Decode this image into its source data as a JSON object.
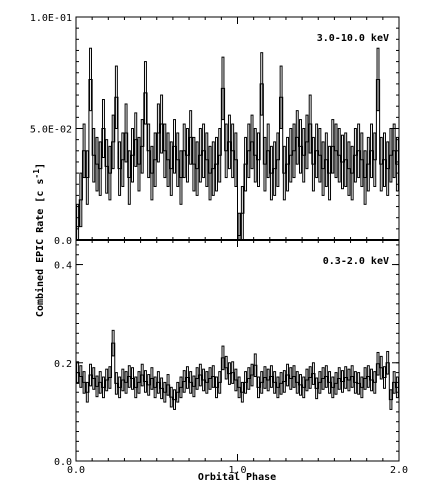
{
  "chart_data": {
    "type": "line",
    "figure": {
      "xlabel": "Orbital Phase",
      "ylabel_main": "Combined EPIC Rate [c s",
      "ylabel_exp": "-1",
      "ylabel_close": "]"
    },
    "panels": [
      {
        "id": "hard",
        "annotation": "3.0-10.0 keV",
        "ylim": [
          0.0,
          0.1
        ],
        "xlim": [
          0.0,
          2.0
        ],
        "yticks": [
          {
            "value": 0.0,
            "label": "0.0"
          },
          {
            "value": 0.05,
            "label": "5.0E-02"
          },
          {
            "value": 0.1,
            "label": "1.0E-01"
          }
        ],
        "xticks": [
          {
            "value": 0.0,
            "label": ""
          },
          {
            "value": 1.0,
            "label": ""
          },
          {
            "value": 2.0,
            "label": ""
          }
        ],
        "bin_width": 0.02,
        "values": [
          0.006,
          0.018,
          0.04,
          0.028,
          0.072,
          0.038,
          0.034,
          0.032,
          0.05,
          0.033,
          0.03,
          0.044,
          0.064,
          0.032,
          0.036,
          0.048,
          0.028,
          0.038,
          0.045,
          0.034,
          0.042,
          0.066,
          0.04,
          0.03,
          0.036,
          0.048,
          0.052,
          0.04,
          0.036,
          0.032,
          0.042,
          0.036,
          0.028,
          0.04,
          0.038,
          0.046,
          0.034,
          0.032,
          0.038,
          0.04,
          0.036,
          0.03,
          0.032,
          0.034,
          0.038,
          0.068,
          0.04,
          0.044,
          0.04,
          0.036,
          0.002,
          0.012,
          0.034,
          0.04,
          0.044,
          0.038,
          0.036,
          0.07,
          0.034,
          0.04,
          0.03,
          0.032,
          0.036,
          0.064,
          0.03,
          0.034,
          0.038,
          0.04,
          0.046,
          0.042,
          0.038,
          0.044,
          0.052,
          0.034,
          0.04,
          0.038,
          0.032,
          0.036,
          0.03,
          0.042,
          0.04,
          0.038,
          0.035,
          0.036,
          0.032,
          0.03,
          0.038,
          0.04,
          0.036,
          0.028,
          0.034,
          0.04,
          0.036,
          0.072,
          0.034,
          0.036,
          0.032,
          0.038,
          0.04,
          0.034
        ],
        "errors": [
          0.01,
          0.012,
          0.012,
          0.012,
          0.014,
          0.012,
          0.012,
          0.012,
          0.013,
          0.012,
          0.012,
          0.012,
          0.014,
          0.012,
          0.012,
          0.013,
          0.012,
          0.012,
          0.012,
          0.012,
          0.012,
          0.014,
          0.012,
          0.012,
          0.012,
          0.013,
          0.013,
          0.012,
          0.012,
          0.012,
          0.012,
          0.012,
          0.012,
          0.012,
          0.012,
          0.012,
          0.012,
          0.012,
          0.012,
          0.012,
          0.012,
          0.012,
          0.012,
          0.012,
          0.012,
          0.014,
          0.012,
          0.012,
          0.012,
          0.012,
          0.01,
          0.012,
          0.012,
          0.012,
          0.012,
          0.012,
          0.012,
          0.014,
          0.012,
          0.012,
          0.012,
          0.012,
          0.012,
          0.014,
          0.012,
          0.012,
          0.012,
          0.012,
          0.012,
          0.012,
          0.012,
          0.012,
          0.013,
          0.012,
          0.012,
          0.012,
          0.012,
          0.012,
          0.012,
          0.012,
          0.012,
          0.012,
          0.012,
          0.012,
          0.012,
          0.012,
          0.012,
          0.012,
          0.012,
          0.012,
          0.012,
          0.012,
          0.012,
          0.014,
          0.012,
          0.012,
          0.012,
          0.012,
          0.012,
          0.012
        ]
      },
      {
        "id": "soft",
        "annotation": "0.3-2.0 keV",
        "ylim": [
          0.0,
          0.45
        ],
        "xlim": [
          0.0,
          2.0
        ],
        "yticks": [
          {
            "value": 0.0,
            "label": "0.0"
          },
          {
            "value": 0.2,
            "label": "0.2"
          },
          {
            "value": 0.4,
            "label": "0.4"
          }
        ],
        "xticks": [
          {
            "value": 0.0,
            "label": "0.0"
          },
          {
            "value": 1.0,
            "label": "1.0"
          },
          {
            "value": 2.0,
            "label": "2.0"
          }
        ],
        "bin_width": 0.02,
        "values": [
          0.18,
          0.172,
          0.16,
          0.14,
          0.175,
          0.168,
          0.152,
          0.16,
          0.15,
          0.165,
          0.17,
          0.24,
          0.158,
          0.15,
          0.165,
          0.16,
          0.172,
          0.168,
          0.15,
          0.16,
          0.175,
          0.162,
          0.155,
          0.168,
          0.15,
          0.16,
          0.148,
          0.14,
          0.155,
          0.13,
          0.125,
          0.14,
          0.15,
          0.162,
          0.17,
          0.16,
          0.152,
          0.168,
          0.175,
          0.165,
          0.16,
          0.168,
          0.172,
          0.15,
          0.16,
          0.21,
          0.19,
          0.178,
          0.18,
          0.165,
          0.15,
          0.14,
          0.16,
          0.168,
          0.175,
          0.195,
          0.15,
          0.16,
          0.17,
          0.165,
          0.172,
          0.16,
          0.15,
          0.158,
          0.162,
          0.175,
          0.168,
          0.172,
          0.16,
          0.155,
          0.15,
          0.165,
          0.17,
          0.178,
          0.148,
          0.16,
          0.168,
          0.172,
          0.16,
          0.15,
          0.158,
          0.168,
          0.162,
          0.17,
          0.165,
          0.172,
          0.16,
          0.158,
          0.15,
          0.168,
          0.172,
          0.165,
          0.16,
          0.198,
          0.19,
          0.17,
          0.2,
          0.125,
          0.16,
          0.15
        ],
        "errors": [
          0.022,
          0.022,
          0.022,
          0.02,
          0.022,
          0.022,
          0.021,
          0.022,
          0.021,
          0.022,
          0.022,
          0.026,
          0.022,
          0.021,
          0.022,
          0.022,
          0.022,
          0.022,
          0.021,
          0.022,
          0.022,
          0.022,
          0.021,
          0.022,
          0.021,
          0.022,
          0.021,
          0.02,
          0.021,
          0.02,
          0.02,
          0.02,
          0.021,
          0.022,
          0.022,
          0.022,
          0.021,
          0.022,
          0.022,
          0.022,
          0.022,
          0.022,
          0.022,
          0.021,
          0.022,
          0.024,
          0.023,
          0.022,
          0.022,
          0.022,
          0.021,
          0.02,
          0.022,
          0.022,
          0.022,
          0.023,
          0.021,
          0.022,
          0.022,
          0.022,
          0.022,
          0.022,
          0.021,
          0.022,
          0.022,
          0.022,
          0.022,
          0.022,
          0.022,
          0.021,
          0.021,
          0.022,
          0.022,
          0.022,
          0.021,
          0.022,
          0.022,
          0.022,
          0.022,
          0.021,
          0.022,
          0.022,
          0.022,
          0.022,
          0.022,
          0.022,
          0.022,
          0.022,
          0.021,
          0.022,
          0.022,
          0.022,
          0.022,
          0.023,
          0.023,
          0.022,
          0.023,
          0.02,
          0.022,
          0.021
        ]
      }
    ]
  }
}
